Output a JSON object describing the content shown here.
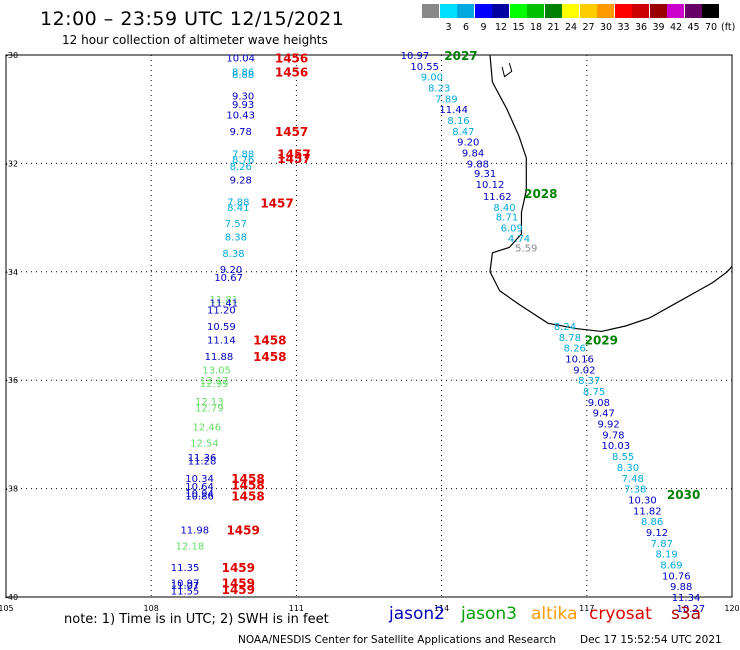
{
  "header": {
    "title": "12:00 – 23:59 UTC 12/15/2021",
    "subtitle": "12 hour collection of altimeter wave heights"
  },
  "scale": {
    "unit": "(ft)",
    "bins": [
      {
        "label": "",
        "color": "#888888"
      },
      {
        "label": "3",
        "color": "#00e0ff"
      },
      {
        "label": "6",
        "color": "#00a8e0"
      },
      {
        "label": "9",
        "color": "#0000ff"
      },
      {
        "label": "12",
        "color": "#0000a0"
      },
      {
        "label": "15",
        "color": "#00ff00"
      },
      {
        "label": "18",
        "color": "#00c000"
      },
      {
        "label": "21",
        "color": "#008000"
      },
      {
        "label": "24",
        "color": "#ffff00"
      },
      {
        "label": "27",
        "color": "#ffcc00"
      },
      {
        "label": "30",
        "color": "#ff9900"
      },
      {
        "label": "33",
        "color": "#ff0000"
      },
      {
        "label": "36",
        "color": "#cc0000"
      },
      {
        "label": "39",
        "color": "#990000"
      },
      {
        "label": "42",
        "color": "#cc00cc"
      },
      {
        "label": "45",
        "color": "#660066"
      },
      {
        "label": "70",
        "color": "#000000"
      }
    ]
  },
  "axes": {
    "lat_labels": [
      "-30",
      "-32",
      "-34",
      "-36",
      "-38",
      "-40"
    ],
    "lon_labels": [
      "105",
      "108",
      "111",
      "114",
      "117",
      "120"
    ]
  },
  "colors": {
    "jason2": "#0000c0",
    "jason3": "#00a000",
    "altika": "#ff9900",
    "cryosat": "#e00000",
    "s3a": "#b00000",
    "light": "#00aadd",
    "green": "#66dd66",
    "gray": "#888888"
  },
  "tracks": {
    "west": [
      {
        "t": "10.04",
        "c": "jason2",
        "lat": -30.05,
        "lon": 109.85
      },
      {
        "t": "8.86",
        "c": "light",
        "lat": -30.3,
        "lon": 109.9
      },
      {
        "t": "8.88",
        "c": "light",
        "lat": -30.35,
        "lon": 109.9
      },
      {
        "t": "9.30",
        "c": "jason2",
        "lat": -30.75,
        "lon": 109.9
      },
      {
        "t": "9.93",
        "c": "jason2",
        "lat": -30.9,
        "lon": 109.9
      },
      {
        "t": "10.43",
        "c": "jason2",
        "lat": -31.1,
        "lon": 109.85
      },
      {
        "t": "9.78",
        "c": "jason2",
        "lat": -31.4,
        "lon": 109.85
      },
      {
        "t": "7.88",
        "c": "light",
        "lat": -31.82,
        "lon": 109.9
      },
      {
        "t": "8.76",
        "c": "light",
        "lat": -31.92,
        "lon": 109.9
      },
      {
        "t": "8.26",
        "c": "light",
        "lat": -32.05,
        "lon": 109.85
      },
      {
        "t": "9.28",
        "c": "jason2",
        "lat": -32.3,
        "lon": 109.85
      },
      {
        "t": "7.88",
        "c": "light",
        "lat": -32.7,
        "lon": 109.8
      },
      {
        "t": "8.41",
        "c": "light",
        "lat": -32.8,
        "lon": 109.8
      },
      {
        "t": "7.57",
        "c": "light",
        "lat": -33.1,
        "lon": 109.75
      },
      {
        "t": "8.38",
        "c": "light",
        "lat": -33.35,
        "lon": 109.75
      },
      {
        "t": "8.38",
        "c": "light",
        "lat": -33.65,
        "lon": 109.7
      },
      {
        "t": "9.20",
        "c": "jason2",
        "lat": -33.95,
        "lon": 109.65
      },
      {
        "t": "10.67",
        "c": "jason2",
        "lat": -34.1,
        "lon": 109.6
      },
      {
        "t": "11.81",
        "c": "green",
        "lat": -34.5,
        "lon": 109.5
      },
      {
        "t": "11.41",
        "c": "jason2",
        "lat": -34.57,
        "lon": 109.5
      },
      {
        "t": "11.20",
        "c": "jason2",
        "lat": -34.7,
        "lon": 109.45
      },
      {
        "t": "10.59",
        "c": "jason2",
        "lat": -35.0,
        "lon": 109.45
      },
      {
        "t": "11.14",
        "c": "jason2",
        "lat": -35.25,
        "lon": 109.45
      },
      {
        "t": "11.88",
        "c": "jason2",
        "lat": -35.55,
        "lon": 109.4
      },
      {
        "t": "13.05",
        "c": "green",
        "lat": -35.8,
        "lon": 109.35
      },
      {
        "t": "13.17",
        "c": "green",
        "lat": -36.0,
        "lon": 109.3
      },
      {
        "t": "12.99",
        "c": "green",
        "lat": -36.05,
        "lon": 109.3
      },
      {
        "t": "12.13",
        "c": "green",
        "lat": -36.38,
        "lon": 109.2
      },
      {
        "t": "12.79",
        "c": "green",
        "lat": -36.5,
        "lon": 109.2
      },
      {
        "t": "12.46",
        "c": "green",
        "lat": -36.85,
        "lon": 109.15
      },
      {
        "t": "12.54",
        "c": "green",
        "lat": -37.15,
        "lon": 109.1
      },
      {
        "t": "11.36",
        "c": "jason2",
        "lat": -37.42,
        "lon": 109.05
      },
      {
        "t": "11.28",
        "c": "jason2",
        "lat": -37.48,
        "lon": 109.05
      },
      {
        "t": "10.34",
        "c": "jason2",
        "lat": -37.8,
        "lon": 109.0
      },
      {
        "t": "10.64",
        "c": "jason2",
        "lat": -37.95,
        "lon": 109.0
      },
      {
        "t": "10.94",
        "c": "jason2",
        "lat": -38.08,
        "lon": 109.0
      },
      {
        "t": "10.86",
        "c": "jason2",
        "lat": -38.13,
        "lon": 109.0
      },
      {
        "t": "11.98",
        "c": "jason2",
        "lat": -38.75,
        "lon": 108.9
      },
      {
        "t": "12.18",
        "c": "green",
        "lat": -39.05,
        "lon": 108.8
      },
      {
        "t": "11.35",
        "c": "jason2",
        "lat": -39.45,
        "lon": 108.7
      },
      {
        "t": "10.97",
        "c": "jason2",
        "lat": -39.73,
        "lon": 108.7
      },
      {
        "t": "11.07",
        "c": "jason2",
        "lat": -39.78,
        "lon": 108.7
      },
      {
        "t": "11.55",
        "c": "jason2",
        "lat": -39.88,
        "lon": 108.7
      }
    ],
    "west_times": [
      {
        "t": "1456",
        "lat": -30.05,
        "lon": 110.9
      },
      {
        "t": "1456",
        "lat": -30.3,
        "lon": 110.9
      },
      {
        "t": "1457",
        "lat": -31.4,
        "lon": 110.9
      },
      {
        "t": "1457",
        "lat": -31.82,
        "lon": 110.95
      },
      {
        "t": "1457",
        "lat": -31.9,
        "lon": 110.95
      },
      {
        "t": "1457",
        "lat": -32.72,
        "lon": 110.6
      },
      {
        "t": "1458",
        "lat": -35.25,
        "lon": 110.45
      },
      {
        "t": "1458",
        "lat": -35.55,
        "lon": 110.45
      },
      {
        "t": "1458",
        "lat": -37.8,
        "lon": 110.0
      },
      {
        "t": "1458",
        "lat": -37.92,
        "lon": 110.0
      },
      {
        "t": "1458",
        "lat": -38.13,
        "lon": 110.0
      },
      {
        "t": "1459",
        "lat": -38.75,
        "lon": 109.9
      },
      {
        "t": "1459",
        "lat": -39.45,
        "lon": 109.8
      },
      {
        "t": "1459",
        "lat": -39.73,
        "lon": 109.8
      },
      {
        "t": "1459",
        "lat": -39.85,
        "lon": 109.8
      }
    ],
    "east": [
      {
        "t": "10.97",
        "c": "jason2",
        "lat": -30.0,
        "lon": 113.45
      },
      {
        "t": "10.55",
        "c": "jason2",
        "lat": -30.2,
        "lon": 113.65
      },
      {
        "t": "9.00",
        "c": "light",
        "lat": -30.4,
        "lon": 113.8
      },
      {
        "t": "8.23",
        "c": "light",
        "lat": -30.6,
        "lon": 113.95
      },
      {
        "t": "7.89",
        "c": "light",
        "lat": -30.8,
        "lon": 114.1
      },
      {
        "t": "11.44",
        "c": "jason2",
        "lat": -31.0,
        "lon": 114.25
      },
      {
        "t": "8.16",
        "c": "light",
        "lat": -31.2,
        "lon": 114.35
      },
      {
        "t": "8.47",
        "c": "light",
        "lat": -31.4,
        "lon": 114.45
      },
      {
        "t": "9.20",
        "c": "jason2",
        "lat": -31.6,
        "lon": 114.55
      },
      {
        "t": "9.84",
        "c": "jason2",
        "lat": -31.8,
        "lon": 114.65
      },
      {
        "t": "9.88",
        "c": "jason2",
        "lat": -32.0,
        "lon": 114.75
      },
      {
        "t": "9.31",
        "c": "jason2",
        "lat": -32.18,
        "lon": 114.9
      },
      {
        "t": "10.12",
        "c": "jason2",
        "lat": -32.38,
        "lon": 115.0
      },
      {
        "t": "11.62",
        "c": "jason2",
        "lat": -32.6,
        "lon": 115.15
      },
      {
        "t": "8.40",
        "c": "light",
        "lat": -32.8,
        "lon": 115.3
      },
      {
        "t": "8.71",
        "c": "light",
        "lat": -32.98,
        "lon": 115.35
      },
      {
        "t": "6.09",
        "c": "light",
        "lat": -33.18,
        "lon": 115.45
      },
      {
        "t": "4.74",
        "c": "light",
        "lat": -33.38,
        "lon": 115.6
      },
      {
        "t": "5.59",
        "c": "gray",
        "lat": -33.55,
        "lon": 115.75
      },
      {
        "t": "8.24",
        "c": "light",
        "lat": -35.0,
        "lon": 116.55
      },
      {
        "t": "8.78",
        "c": "light",
        "lat": -35.2,
        "lon": 116.65
      },
      {
        "t": "8.26",
        "c": "light",
        "lat": -35.4,
        "lon": 116.75
      },
      {
        "t": "10.16",
        "c": "jason2",
        "lat": -35.6,
        "lon": 116.85
      },
      {
        "t": "9.02",
        "c": "jason2",
        "lat": -35.8,
        "lon": 116.95
      },
      {
        "t": "8.37",
        "c": "light",
        "lat": -36.0,
        "lon": 117.05
      },
      {
        "t": "8.75",
        "c": "light",
        "lat": -36.2,
        "lon": 117.15
      },
      {
        "t": "9.08",
        "c": "jason2",
        "lat": -36.4,
        "lon": 117.25
      },
      {
        "t": "9.47",
        "c": "jason2",
        "lat": -36.6,
        "lon": 117.35
      },
      {
        "t": "9.92",
        "c": "jason2",
        "lat": -36.8,
        "lon": 117.45
      },
      {
        "t": "9.78",
        "c": "jason2",
        "lat": -37.0,
        "lon": 117.55
      },
      {
        "t": "10.03",
        "c": "jason2",
        "lat": -37.2,
        "lon": 117.6
      },
      {
        "t": "8.55",
        "c": "light",
        "lat": -37.4,
        "lon": 117.75
      },
      {
        "t": "8.30",
        "c": "light",
        "lat": -37.6,
        "lon": 117.85
      },
      {
        "t": "7.48",
        "c": "light",
        "lat": -37.8,
        "lon": 117.95
      },
      {
        "t": "7.38",
        "c": "light",
        "lat": -38.0,
        "lon": 118.0
      },
      {
        "t": "10.30",
        "c": "jason2",
        "lat": -38.2,
        "lon": 118.15
      },
      {
        "t": "11.82",
        "c": "jason2",
        "lat": -38.4,
        "lon": 118.25
      },
      {
        "t": "8.86",
        "c": "light",
        "lat": -38.6,
        "lon": 118.35
      },
      {
        "t": "9.12",
        "c": "jason2",
        "lat": -38.8,
        "lon": 118.45
      },
      {
        "t": "7.87",
        "c": "light",
        "lat": -39.0,
        "lon": 118.55
      },
      {
        "t": "8.19",
        "c": "light",
        "lat": -39.2,
        "lon": 118.65
      },
      {
        "t": "8.69",
        "c": "light",
        "lat": -39.4,
        "lon": 118.75
      },
      {
        "t": "10.76",
        "c": "jason2",
        "lat": -39.6,
        "lon": 118.85
      },
      {
        "t": "9.88",
        "c": "jason2",
        "lat": -39.8,
        "lon": 118.95
      },
      {
        "t": "11.34",
        "c": "jason2",
        "lat": -40.0,
        "lon": 119.05
      },
      {
        "t": "10.27",
        "c": "jason2",
        "lat": -40.2,
        "lon": 119.15
      }
    ],
    "east_times": [
      {
        "t": "2027",
        "lat": -30.0,
        "lon": 114.4
      },
      {
        "t": "2028",
        "lat": -32.55,
        "lon": 116.05
      },
      {
        "t": "2029",
        "lat": -35.25,
        "lon": 117.3
      },
      {
        "t": "2030",
        "lat": -38.1,
        "lon": 119.0
      }
    ]
  },
  "footer": {
    "note": "note: 1) Time is in UTC; 2) SWH is in feet",
    "legend": [
      {
        "label": "jason2",
        "color": "#0000c0"
      },
      {
        "label": "jason3",
        "color": "#00a000"
      },
      {
        "label": "altika",
        "color": "#ff9900"
      },
      {
        "label": "cryosat",
        "color": "#e00000"
      },
      {
        "label": "s3a",
        "color": "#b00000"
      }
    ],
    "credit": "NOAA/NESDIS Center for Satellite Applications and Research",
    "timestamp": "Dec 17 15:52:54 UTC 2021"
  }
}
